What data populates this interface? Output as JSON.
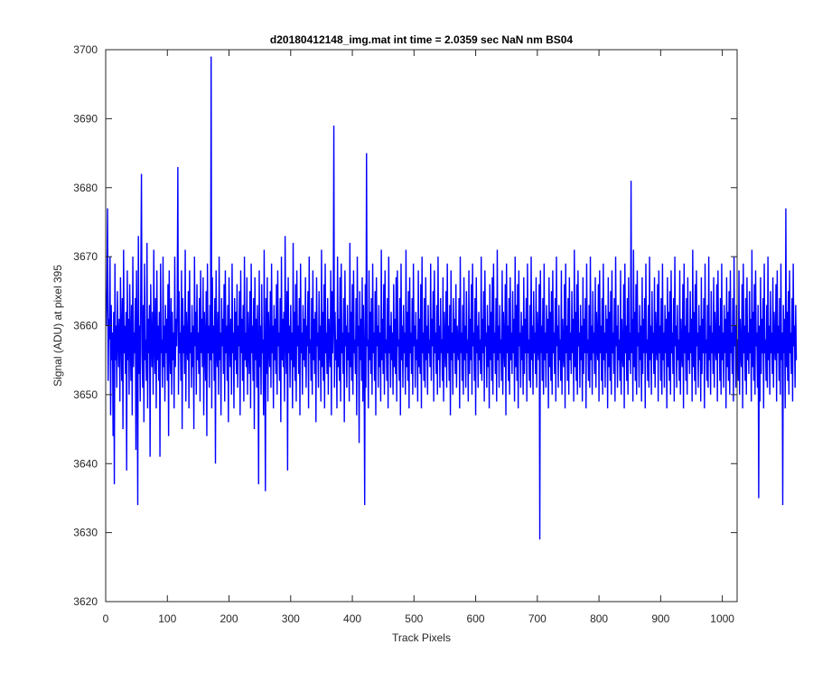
{
  "colors": {
    "background": "#ffffff",
    "axes": "#262626",
    "series": "#0000ff"
  },
  "chart_data": {
    "type": "line",
    "title": "d20180412148_img.mat int time = 2.0359 sec  NaN nm BS04",
    "xlabel": "Track Pixels",
    "ylabel": "Signal (ADU) at pixel 395",
    "xlim": [
      0,
      1024
    ],
    "ylim": [
      3620,
      3700
    ],
    "xticks": [
      0,
      100,
      200,
      300,
      400,
      500,
      600,
      700,
      800,
      900,
      1000
    ],
    "yticks": [
      3620,
      3630,
      3640,
      3650,
      3660,
      3670,
      3680,
      3690,
      3700
    ],
    "grid": false,
    "legend": "none",
    "series_color": "#0000ff",
    "series": [
      {
        "x_start": 1,
        "x_step": 1,
        "values": [
          3660,
          3666,
          3677,
          3652,
          3661,
          3658,
          3670,
          3647,
          3663,
          3655,
          3659,
          3644,
          3662,
          3637,
          3669,
          3655,
          3660,
          3651,
          3665,
          3658,
          3654,
          3661,
          3649,
          3667,
          3659,
          3652,
          3664,
          3645,
          3671,
          3656,
          3660,
          3653,
          3662,
          3639,
          3668,
          3655,
          3661,
          3650,
          3666,
          3658,
          3652,
          3663,
          3647,
          3670,
          3654,
          3659,
          3656,
          3664,
          3642,
          3668,
          3657,
          3634,
          3673,
          3653,
          3660,
          3649,
          3667,
          3682,
          3656,
          3651,
          3663,
          3646,
          3669,
          3655,
          3658,
          3652,
          3672,
          3648,
          3661,
          3656,
          3663,
          3641,
          3666,
          3658,
          3654,
          3662,
          3650,
          3671,
          3657,
          3653,
          3664,
          3648,
          3668,
          3655,
          3660,
          3652,
          3662,
          3641,
          3669,
          3656,
          3658,
          3651,
          3670,
          3654,
          3660,
          3649,
          3663,
          3656,
          3661,
          3652,
          3666,
          3644,
          3668,
          3657,
          3653,
          3664,
          3650,
          3662,
          3655,
          3659,
          3648,
          3670,
          3654,
          3661,
          3657,
          3663,
          3683,
          3650,
          3665,
          3656,
          3659,
          3652,
          3668,
          3645,
          3664,
          3656,
          3660,
          3653,
          3671,
          3649,
          3662,
          3657,
          3655,
          3665,
          3648,
          3668,
          3656,
          3659,
          3651,
          3663,
          3654,
          3660,
          3645,
          3670,
          3657,
          3662,
          3650,
          3666,
          3655,
          3659,
          3653,
          3664,
          3649,
          3668,
          3656,
          3661,
          3654,
          3667,
          3647,
          3662,
          3658,
          3652,
          3665,
          3644,
          3669,
          3656,
          3660,
          3651,
          3663,
          3655,
          3699,
          3648,
          3667,
          3656,
          3660,
          3652,
          3664,
          3640,
          3668,
          3657,
          3654,
          3662,
          3650,
          3670,
          3655,
          3659,
          3647,
          3664,
          3657,
          3661,
          3653,
          3666,
          3649,
          3668,
          3656,
          3660,
          3652,
          3663,
          3646,
          3667,
          3658,
          3654,
          3661,
          3650,
          3669,
          3656,
          3659,
          3648,
          3664,
          3655,
          3662,
          3653,
          3666,
          3651,
          3660,
          3657,
          3665,
          3647,
          3668,
          3656,
          3661,
          3652,
          3663,
          3649,
          3670,
          3655,
          3659,
          3654,
          3667,
          3650,
          3662,
          3657,
          3653,
          3665,
          3648,
          3669,
          3656,
          3660,
          3652,
          3664,
          3645,
          3667,
          3655,
          3661,
          3651,
          3663,
          3657,
          3637,
          3668,
          3654,
          3660,
          3650,
          3666,
          3656,
          3658,
          3647,
          3671,
          3655,
          3636,
          3664,
          3653,
          3667,
          3649,
          3662,
          3657,
          3654,
          3665,
          3651,
          3669,
          3656,
          3660,
          3648,
          3663,
          3655,
          3661,
          3653,
          3666,
          3650,
          3668,
          3657,
          3659,
          3652,
          3664,
          3646,
          3670,
          3655,
          3661,
          3654,
          3662,
          3649,
          3673,
          3658,
          3653,
          3665,
          3639,
          3667,
          3656,
          3660,
          3651,
          3663,
          3655,
          3659,
          3648,
          3672,
          3654,
          3662,
          3652,
          3666,
          3649,
          3668,
          3657,
          3660,
          3653,
          3664,
          3647,
          3669,
          3656,
          3659,
          3650,
          3663,
          3655,
          3661,
          3654,
          3667,
          3651,
          3660,
          3657,
          3665,
          3648,
          3670,
          3656,
          3658,
          3652,
          3664,
          3650,
          3668,
          3655,
          3661,
          3653,
          3662,
          3646,
          3667,
          3657,
          3659,
          3651,
          3665,
          3655,
          3660,
          3649,
          3671,
          3654,
          3662,
          3652,
          3666,
          3648,
          3669,
          3656,
          3659,
          3653,
          3664,
          3650,
          3661,
          3657,
          3654,
          3668,
          3647,
          3665,
          3656,
          3660,
          3689,
          3651,
          3662,
          3655,
          3658,
          3648,
          3670,
          3654,
          3661,
          3652,
          3667,
          3649,
          3669,
          3656,
          3659,
          3653,
          3664,
          3646,
          3668,
          3657,
          3660,
          3651,
          3663,
          3655,
          3659,
          3649,
          3672,
          3654,
          3662,
          3652,
          3666,
          3650,
          3668,
          3656,
          3658,
          3653,
          3664,
          3647,
          3670,
          3657,
          3660,
          3643,
          3665,
          3655,
          3661,
          3652,
          3667,
          3649,
          3663,
          3656,
          3634,
          3666,
          3651,
          3685,
          3657,
          3658,
          3648,
          3668,
          3655,
          3662,
          3653,
          3664,
          3650,
          3669,
          3656,
          3659,
          3652,
          3665,
          3647,
          3667,
          3657,
          3660,
          3651,
          3663,
          3654,
          3659,
          3649,
          3671,
          3655,
          3661,
          3653,
          3666,
          3650,
          3668,
          3656,
          3658,
          3652,
          3664,
          3648,
          3670,
          3656,
          3660,
          3651,
          3662,
          3655,
          3659,
          3650,
          3666,
          3654,
          3661,
          3653,
          3667,
          3649,
          3668,
          3657,
          3658,
          3652,
          3664,
          3647,
          3669,
          3655,
          3660,
          3651,
          3663,
          3656,
          3659,
          3650,
          3671,
          3654,
          3662,
          3652,
          3665,
          3648,
          3667,
          3656,
          3659,
          3653,
          3664,
          3650,
          3669,
          3657,
          3660,
          3651,
          3662,
          3655,
          3658,
          3649,
          3668,
          3654,
          3661,
          3653,
          3666,
          3648,
          3670,
          3656,
          3659,
          3652,
          3664,
          3651,
          3667,
          3655,
          3660,
          3650,
          3663,
          3656,
          3658,
          3654,
          3669,
          3652,
          3661,
          3657,
          3665,
          3649,
          3668,
          3656,
          3659,
          3653,
          3663,
          3650,
          3670,
          3655,
          3660,
          3651,
          3664,
          3656,
          3658,
          3652,
          3667,
          3649,
          3662,
          3657,
          3654,
          3665,
          3651,
          3669,
          3656,
          3660,
          3652,
          3663,
          3647,
          3668,
          3655,
          3659,
          3650,
          3664,
          3656,
          3661,
          3653,
          3666,
          3651,
          3660,
          3657,
          3655,
          3664,
          3648,
          3670,
          3656,
          3659,
          3652,
          3663,
          3650,
          3667,
          3655,
          3660,
          3651,
          3665,
          3656,
          3658,
          3649,
          3668,
          3653,
          3661,
          3655,
          3666,
          3650,
          3669,
          3657,
          3659,
          3652,
          3664,
          3647,
          3667,
          3656,
          3660,
          3651,
          3662,
          3655,
          3658,
          3653,
          3670,
          3652,
          3661,
          3656,
          3665,
          3649,
          3668,
          3657,
          3659,
          3651,
          3663,
          3654,
          3660,
          3648,
          3666,
          3655,
          3662,
          3652,
          3667,
          3650,
          3669,
          3656,
          3659,
          3653,
          3664,
          3649,
          3671,
          3655,
          3660,
          3651,
          3663,
          3656,
          3658,
          3652,
          3668,
          3650,
          3662,
          3657,
          3654,
          3666,
          3647,
          3669,
          3656,
          3660,
          3652,
          3664,
          3650,
          3667,
          3655,
          3659,
          3653,
          3665,
          3656,
          3661,
          3649,
          3670,
          3654,
          3663,
          3652,
          3666,
          3648,
          3668,
          3657,
          3659,
          3651,
          3662,
          3655,
          3660,
          3650,
          3667,
          3653,
          3661,
          3656,
          3664,
          3649,
          3669,
          3656,
          3658,
          3652,
          3663,
          3651,
          3670,
          3655,
          3660,
          3650,
          3665,
          3656,
          3659,
          3653,
          3667,
          3651,
          3662,
          3657,
          3655,
          3666,
          3629,
          3668,
          3656,
          3660,
          3652,
          3664,
          3650,
          3669,
          3655,
          3659,
          3651,
          3663,
          3656,
          3661,
          3648,
          3667,
          3654,
          3662,
          3652,
          3665,
          3650,
          3668,
          3656,
          3659,
          3653,
          3664,
          3649,
          3670,
          3657,
          3660,
          3651,
          3663,
          3655,
          3658,
          3652,
          3668,
          3650,
          3661,
          3656,
          3654,
          3666,
          3648,
          3669,
          3656,
          3660,
          3652,
          3664,
          3650,
          3667,
          3655,
          3659,
          3653,
          3665,
          3656,
          3661,
          3649,
          3671,
          3654,
          3662,
          3652,
          3666,
          3650,
          3668,
          3657,
          3659,
          3651,
          3663,
          3655,
          3660,
          3649,
          3667,
          3653,
          3661,
          3656,
          3664,
          3648,
          3669,
          3656,
          3658,
          3652,
          3663,
          3651,
          3670,
          3655,
          3660,
          3650,
          3665,
          3656,
          3659,
          3653,
          3667,
          3651,
          3662,
          3657,
          3655,
          3666,
          3649,
          3668,
          3656,
          3660,
          3652,
          3664,
          3650,
          3669,
          3655,
          3659,
          3651,
          3663,
          3656,
          3661,
          3648,
          3667,
          3654,
          3662,
          3652,
          3665,
          3650,
          3668,
          3656,
          3659,
          3653,
          3664,
          3649,
          3670,
          3657,
          3660,
          3651,
          3663,
          3655,
          3658,
          3652,
          3668,
          3650,
          3661,
          3656,
          3654,
          3666,
          3648,
          3669,
          3656,
          3660,
          3652,
          3664,
          3650,
          3667,
          3655,
          3659,
          3653,
          3681,
          3656,
          3661,
          3649,
          3671,
          3654,
          3662,
          3652,
          3666,
          3650,
          3668,
          3657,
          3659,
          3651,
          3663,
          3655,
          3660,
          3649,
          3667,
          3653,
          3661,
          3656,
          3664,
          3648,
          3669,
          3656,
          3658,
          3652,
          3663,
          3651,
          3670,
          3655,
          3660,
          3650,
          3665,
          3656,
          3659,
          3653,
          3667,
          3651,
          3662,
          3657,
          3655,
          3666,
          3649,
          3668,
          3656,
          3660,
          3652,
          3664,
          3650,
          3669,
          3655,
          3659,
          3651,
          3663,
          3656,
          3661,
          3648,
          3667,
          3654,
          3662,
          3652,
          3665,
          3650,
          3668,
          3656,
          3659,
          3653,
          3664,
          3649,
          3670,
          3657,
          3660,
          3651,
          3663,
          3655,
          3658,
          3652,
          3668,
          3650,
          3661,
          3656,
          3654,
          3666,
          3648,
          3669,
          3656,
          3660,
          3652,
          3664,
          3650,
          3667,
          3655,
          3659,
          3653,
          3665,
          3656,
          3661,
          3649,
          3671,
          3654,
          3662,
          3652,
          3666,
          3650,
          3668,
          3657,
          3659,
          3651,
          3663,
          3655,
          3660,
          3649,
          3667,
          3653,
          3661,
          3656,
          3664,
          3648,
          3669,
          3656,
          3658,
          3652,
          3663,
          3651,
          3670,
          3655,
          3660,
          3650,
          3665,
          3656,
          3659,
          3653,
          3667,
          3651,
          3662,
          3657,
          3655,
          3666,
          3649,
          3668,
          3656,
          3660,
          3652,
          3664,
          3650,
          3669,
          3655,
          3659,
          3651,
          3663,
          3656,
          3661,
          3648,
          3667,
          3654,
          3662,
          3652,
          3665,
          3650,
          3668,
          3656,
          3659,
          3653,
          3664,
          3649,
          3670,
          3657,
          3660,
          3651,
          3663,
          3655,
          3658,
          3652,
          3668,
          3650,
          3661,
          3656,
          3654,
          3666,
          3648,
          3669,
          3656,
          3660,
          3652,
          3664,
          3650,
          3667,
          3655,
          3659,
          3653,
          3665,
          3656,
          3661,
          3649,
          3671,
          3654,
          3662,
          3652,
          3666,
          3650,
          3668,
          3657,
          3659,
          3651,
          3663,
          3635,
          3660,
          3649,
          3667,
          3653,
          3661,
          3656,
          3664,
          3648,
          3669,
          3656,
          3658,
          3652,
          3663,
          3651,
          3670,
          3655,
          3660,
          3650,
          3665,
          3656,
          3659,
          3653,
          3667,
          3651,
          3662,
          3657,
          3655,
          3666,
          3649,
          3668,
          3656,
          3660,
          3652,
          3664,
          3650,
          3669,
          3655,
          3659,
          3634,
          3663,
          3656,
          3661,
          3648,
          3677,
          3654,
          3662,
          3652,
          3665,
          3650,
          3668,
          3656,
          3659,
          3653,
          3664,
          3649,
          3669,
          3657,
          3660,
          3651,
          3663,
          3655
        ]
      }
    ]
  }
}
